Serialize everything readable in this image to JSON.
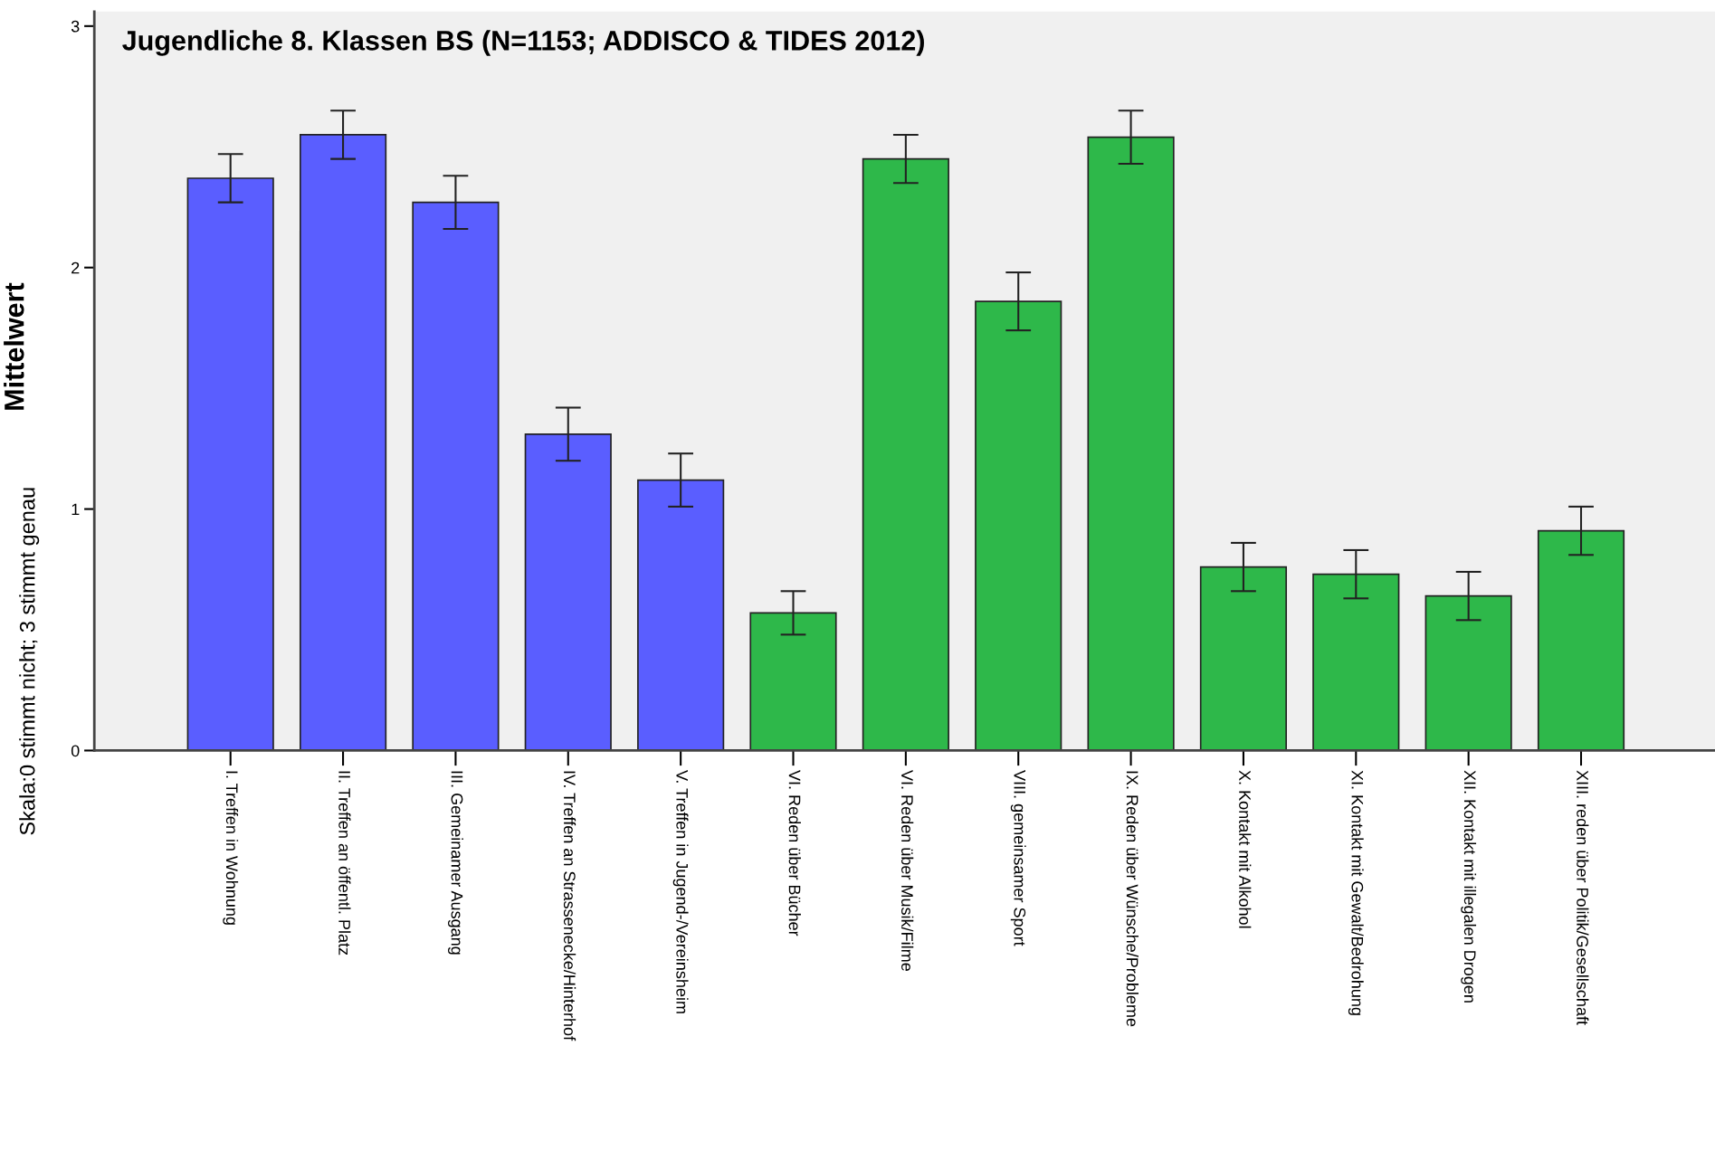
{
  "chart_data": {
    "type": "bar",
    "title": "Jugendliche 8. Klassen BS (N=1153; ADDISCO & TIDES 2012)",
    "ylabel": "Mittelwert",
    "annotations": [
      "Skala:0 stimmt nicht; 3 stimmt genau"
    ],
    "categories": [
      "I. Treffen in Wohnung",
      "II. Treffen an öffentl. Platz",
      "III. Gemeinamer Ausgang",
      "IV. Treffen an Strassenecke/Hinterhof",
      "V. Treffen in Jugend-/Vereinsheim",
      "VI. Reden über Bücher",
      "VI. Reden über Musik/Filme",
      "VIII. gemeinsamer Sport",
      "IX. Reden über Wünsche/Probleme",
      "X. Kontakt mit Alkohol",
      "XI. Kontakt mit Gewalt/Bedrohung",
      "XII. Kontakt mit illegalen Drogen",
      "XIII. reden über Politik/Gesellschaft"
    ],
    "values": [
      2.37,
      2.55,
      2.27,
      1.31,
      1.12,
      0.57,
      2.45,
      1.86,
      2.54,
      0.76,
      0.73,
      0.64,
      0.91
    ],
    "errors": [
      0.1,
      0.1,
      0.11,
      0.11,
      0.11,
      0.09,
      0.1,
      0.12,
      0.11,
      0.1,
      0.1,
      0.1,
      0.1
    ],
    "colors": [
      "#5a5eff",
      "#5a5eff",
      "#5a5eff",
      "#5a5eff",
      "#5a5eff",
      "#2eb84a",
      "#2eb84a",
      "#2eb84a",
      "#2eb84a",
      "#2eb84a",
      "#2eb84a",
      "#2eb84a",
      "#2eb84a"
    ],
    "ylim": [
      0,
      3.06
    ],
    "yticks": [
      0,
      1,
      2,
      3
    ],
    "grid": false,
    "legend": false
  }
}
